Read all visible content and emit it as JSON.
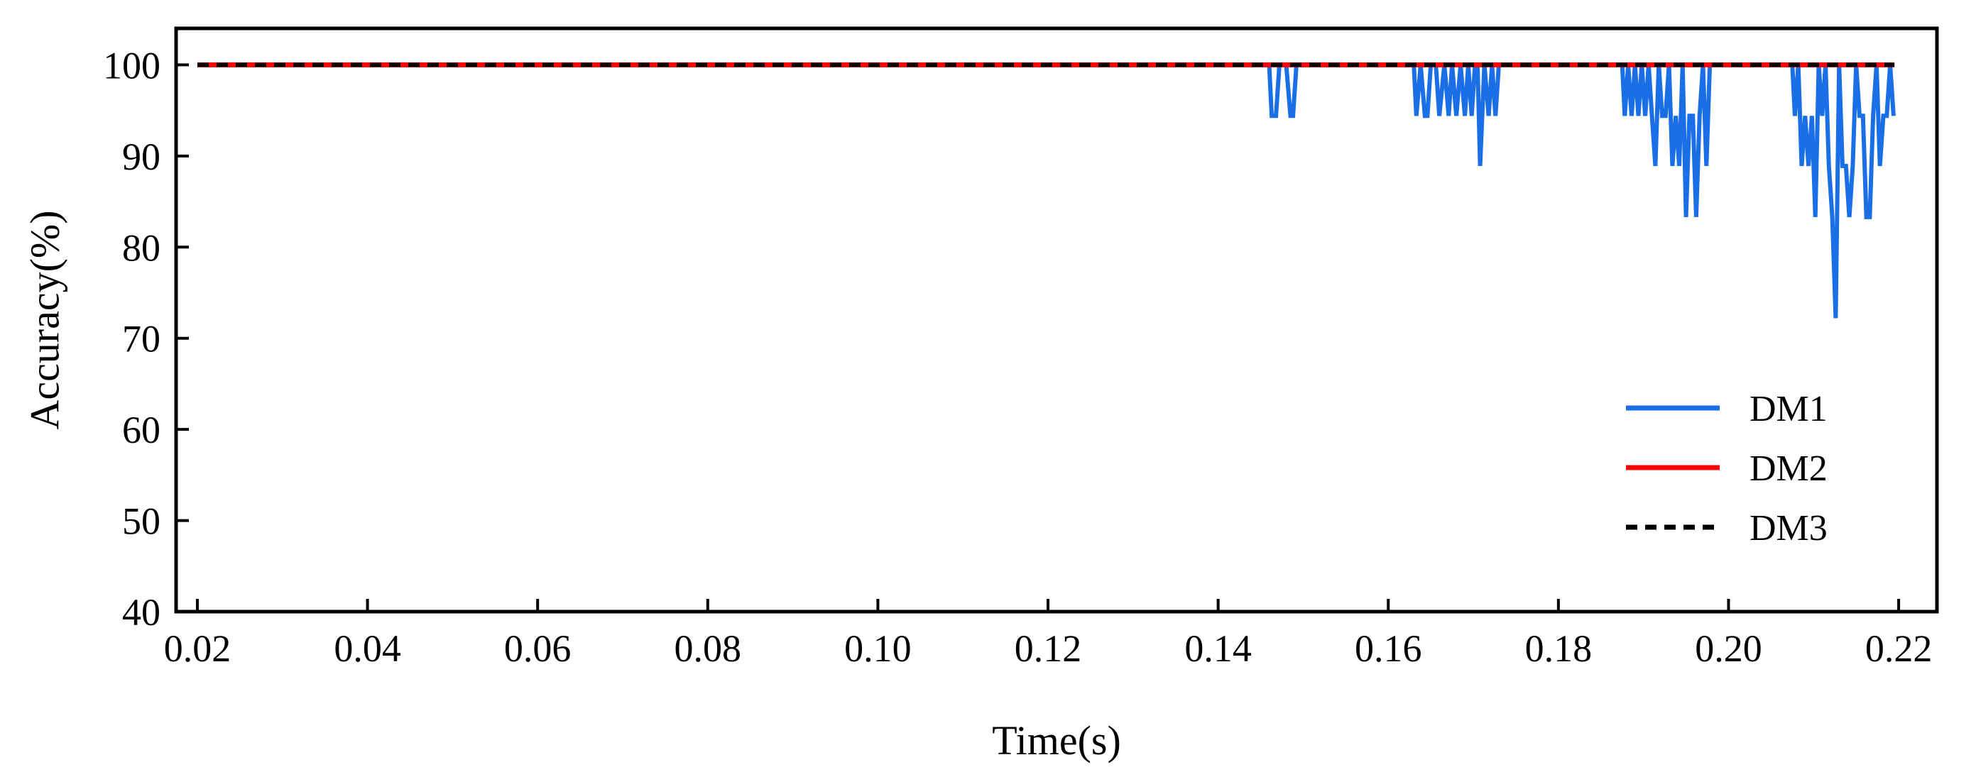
{
  "chart_data": {
    "type": "line",
    "title": "",
    "xlabel": "Time(s)",
    "ylabel": "Accuracy(%)",
    "xlim": [
      0.0175,
      0.2245
    ],
    "ylim": [
      40,
      104
    ],
    "xticks": [
      0.02,
      0.04,
      0.06,
      0.08,
      0.1,
      0.12,
      0.14,
      0.16,
      0.18,
      0.2,
      0.22
    ],
    "xtick_labels": [
      "0.02",
      "0.04",
      "0.06",
      "0.08",
      "0.10",
      "0.12",
      "0.14",
      "0.16",
      "0.18",
      "0.20",
      "0.22"
    ],
    "yticks": [
      40,
      50,
      60,
      70,
      80,
      90,
      100
    ],
    "ytick_labels": [
      "40",
      "50",
      "60",
      "70",
      "80",
      "90",
      "100"
    ],
    "grid": false,
    "legend_position": "bottom-right",
    "series": [
      {
        "name": "DM1",
        "color": "#1a6fe6",
        "style": "solid",
        "x": [
          0.02,
          0.146,
          0.1463,
          0.1468,
          0.1472,
          0.148,
          0.1485,
          0.1488,
          0.1492,
          0.163,
          0.1633,
          0.1638,
          0.1643,
          0.1646,
          0.165,
          0.1656,
          0.166,
          0.1666,
          0.1671,
          0.1675,
          0.168,
          0.1685,
          0.169,
          0.1694,
          0.1698,
          0.1702,
          0.1705,
          0.1708,
          0.1713,
          0.1718,
          0.1722,
          0.1726,
          0.173,
          0.1875,
          0.1878,
          0.1882,
          0.1886,
          0.189,
          0.1894,
          0.1898,
          0.1902,
          0.1906,
          0.191,
          0.1914,
          0.1918,
          0.1922,
          0.1926,
          0.193,
          0.1934,
          0.1938,
          0.1942,
          0.1946,
          0.195,
          0.1954,
          0.1958,
          0.1962,
          0.1966,
          0.197,
          0.1974,
          0.1978,
          0.1982,
          0.1986,
          0.199,
          0.1994,
          0.1998,
          0.2002,
          0.2075,
          0.2078,
          0.2082,
          0.2086,
          0.209,
          0.2094,
          0.2098,
          0.2102,
          0.2106,
          0.211,
          0.2114,
          0.2118,
          0.2122,
          0.2126,
          0.213,
          0.2134,
          0.2138,
          0.2142,
          0.2146,
          0.215,
          0.2154,
          0.2158,
          0.2162,
          0.2166,
          0.217,
          0.2174,
          0.2178,
          0.2182,
          0.2186,
          0.219,
          0.2194
        ],
        "values": [
          100,
          100,
          94.4,
          94.4,
          100,
          100,
          94.4,
          94.4,
          100,
          100,
          94.4,
          100,
          94.4,
          94.4,
          100,
          100,
          94.4,
          100,
          94.4,
          100,
          94.4,
          100,
          94.4,
          100,
          94.4,
          100,
          100,
          88.9,
          100,
          94.4,
          100,
          94.4,
          100,
          100,
          94.4,
          100,
          94.4,
          100,
          94.4,
          100,
          94.4,
          100,
          94.4,
          88.9,
          100,
          94.4,
          94.4,
          100,
          88.9,
          94.4,
          88.9,
          100,
          83.3,
          94.4,
          94.4,
          83.3,
          94.4,
          100,
          88.9,
          100,
          100,
          100,
          100,
          100,
          100,
          100,
          100,
          94.4,
          100,
          88.9,
          94.4,
          88.9,
          94.4,
          83.3,
          100,
          94.4,
          100,
          88.9,
          83.3,
          72.2,
          100,
          88.9,
          88.9,
          83.3,
          88.9,
          100,
          94.4,
          94.4,
          83.3,
          83.3,
          94.4,
          100,
          88.9,
          94.4,
          94.4,
          100,
          94.4
        ]
      },
      {
        "name": "DM2",
        "color": "#ff0000",
        "style": "solid",
        "x": [
          0.02,
          0.2195
        ],
        "values": [
          100,
          100
        ]
      },
      {
        "name": "DM3",
        "color": "#000000",
        "style": "dashed",
        "x": [
          0.02,
          0.2195
        ],
        "values": [
          100,
          100
        ]
      }
    ]
  }
}
